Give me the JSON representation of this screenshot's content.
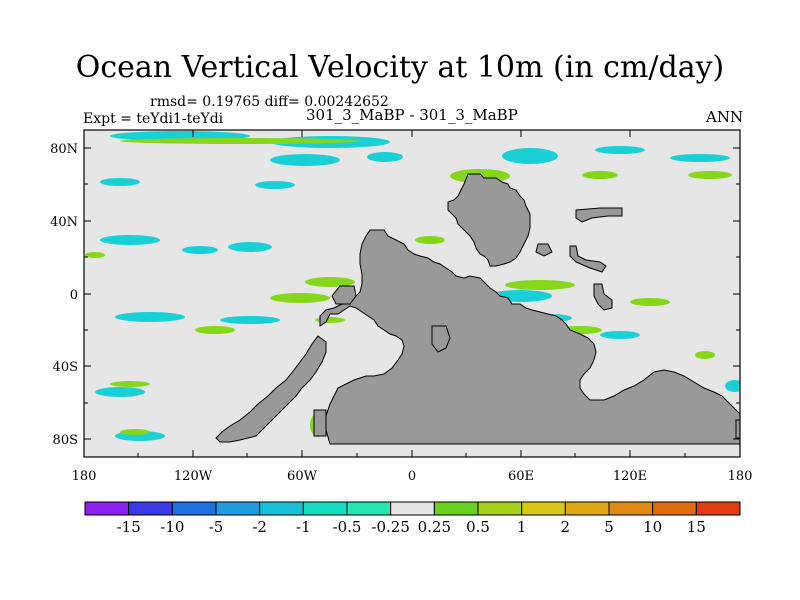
{
  "title": "Ocean Vertical Velocity at 10m (in cm/day)",
  "subtitle_stats": "rmsd= 0.19765  diff= 0.00242652",
  "experiment_label": "Expt = teYdi1-teYdi",
  "case_label": "301_3_MaBP - 301_3_MaBP",
  "season_label": "ANN",
  "lat_ticks": [
    "80N",
    "40N",
    "0",
    "40S",
    "80S"
  ],
  "lon_ticks": [
    "180",
    "120W",
    "60W",
    "0",
    "60E",
    "120E",
    "180"
  ],
  "colorbar": {
    "labels": [
      "-15",
      "-10",
      "-5",
      "-2",
      "-1",
      "-0.5",
      "-0.25",
      "0.25",
      "0.5",
      "1",
      "2",
      "5",
      "10",
      "15"
    ],
    "colors": [
      "#8a1ff0",
      "#3a3ae8",
      "#1f6fe0",
      "#1f9be0",
      "#19bfd6",
      "#13dcc0",
      "#23e6b0",
      "#e6e6e6",
      "#69d11b",
      "#a6d11b",
      "#d6c815",
      "#e0a815",
      "#e08a15",
      "#e06a10",
      "#e03c10"
    ]
  },
  "colors": {
    "ocean_background": "#e6e6e6",
    "land": "#999999",
    "cyan_anomaly": "#19d0d6",
    "green_anomaly": "#86d61a"
  }
}
